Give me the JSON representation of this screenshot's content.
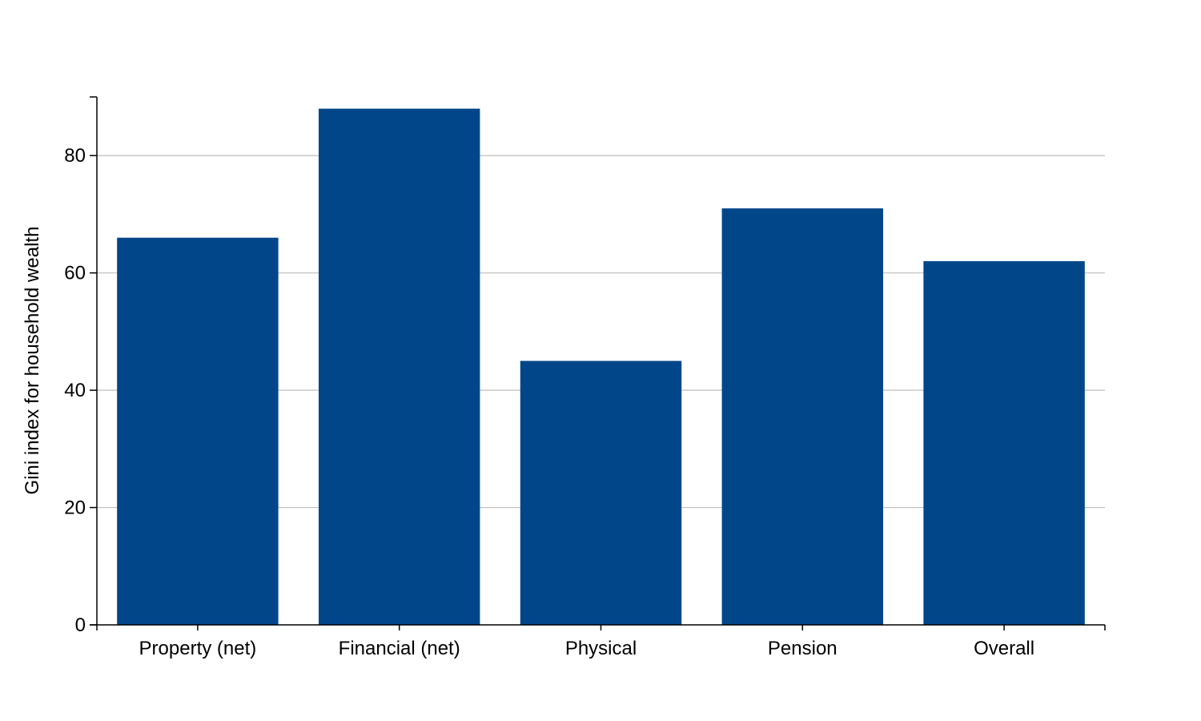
{
  "chart_data": {
    "type": "bar",
    "title": "",
    "xlabel": "",
    "ylabel": "Gini index for household wealth",
    "categories": [
      "Property (net)",
      "Financial (net)",
      "Physical",
      "Pension",
      "Overall"
    ],
    "values": [
      66,
      88,
      45,
      71,
      62
    ],
    "ylim": [
      0,
      90
    ],
    "yticks": [
      0,
      20,
      40,
      60,
      80
    ],
    "grid": "horizontal",
    "legend": "none",
    "bar_color": "#02468A",
    "grid_color": "#BEBEBE",
    "axis_color": "#000000"
  }
}
